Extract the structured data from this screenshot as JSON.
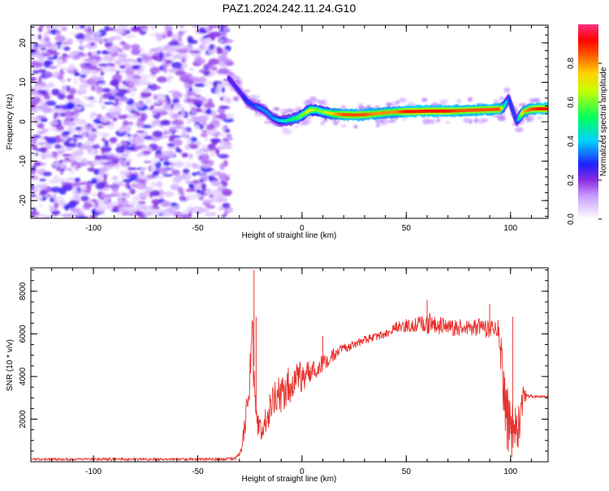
{
  "title": "PAZ1.2024.242.11.24.G10",
  "chart_data": [
    {
      "type": "heatmap",
      "title": "PAZ1.2024.242.11.24.G10",
      "xlabel": "Height of straight line (km)",
      "ylabel": "Frequency (Hz)",
      "xlim": [
        -130,
        118
      ],
      "ylim": [
        -24.5,
        24.5
      ],
      "xticks": [
        -100,
        -50,
        0,
        50,
        100
      ],
      "yticks": [
        -20,
        -10,
        0,
        10,
        20
      ],
      "xtick_labels": [
        "-100",
        "-50",
        "0",
        "50",
        "100"
      ],
      "ytick_labels": [
        "-20",
        "-10",
        "0",
        "10",
        "20"
      ],
      "colorbar": {
        "label": "Normalized spectral amplitude",
        "range": [
          0,
          1
        ],
        "ticks": [
          0.0,
          0.2,
          0.4,
          0.6,
          0.8
        ],
        "tick_labels": [
          "0.0",
          "0.2",
          "0.4",
          "0.6",
          "0.8"
        ]
      },
      "ridge": {
        "x": [
          -35,
          -32,
          -29,
          -26,
          -23,
          -20,
          -17,
          -14,
          -11,
          -8,
          -5,
          -2,
          1,
          4,
          7,
          10,
          15,
          20,
          25,
          30,
          35,
          40,
          45,
          50,
          55,
          60,
          65,
          70,
          75,
          80,
          85,
          90,
          95,
          97,
          99,
          101,
          103,
          106,
          110,
          114,
          118
        ],
        "y": [
          11,
          9,
          7,
          5,
          4,
          3.5,
          2.5,
          1,
          0.3,
          0.2,
          0.6,
          1,
          2,
          3,
          3,
          2.5,
          2,
          1.8,
          1.7,
          1.8,
          2,
          2.3,
          2.5,
          2.6,
          2.6,
          2.7,
          2.7,
          2.7,
          2.8,
          2.9,
          3,
          3.1,
          3.2,
          4,
          6,
          3,
          0,
          2.5,
          3.2,
          3.3,
          3.3
        ],
        "amplitude": [
          0.25,
          0.25,
          0.25,
          0.3,
          0.3,
          0.35,
          0.35,
          0.35,
          0.4,
          0.45,
          0.5,
          0.55,
          0.6,
          0.7,
          0.6,
          0.6,
          0.75,
          0.85,
          0.85,
          0.85,
          0.8,
          0.8,
          0.8,
          0.9,
          0.9,
          0.9,
          0.9,
          0.9,
          0.85,
          0.85,
          0.85,
          0.85,
          0.85,
          0.5,
          0.3,
          0.3,
          0.3,
          0.75,
          0.85,
          0.9,
          0.9
        ]
      }
    },
    {
      "type": "line",
      "xlabel": "Height of straight line (km)",
      "ylabel": "SNR (10 * v/v)",
      "xlim": [
        -130,
        118
      ],
      "ylim": [
        0,
        9100
      ],
      "xticks": [
        -100,
        -50,
        0,
        50,
        100
      ],
      "yticks": [
        2000,
        4000,
        6000,
        8000
      ],
      "xtick_labels": [
        "-100",
        "-50",
        "0",
        "50",
        "100"
      ],
      "ytick_labels": [
        "2000",
        "4000",
        "6000",
        "8000"
      ],
      "color": "#e8332f",
      "envelope": {
        "x": [
          -130,
          -40,
          -32,
          -30,
          -29,
          -28,
          -27,
          -26,
          -25,
          -24,
          -23,
          -22,
          -20,
          -18,
          -15,
          -12,
          -10,
          -7,
          -4,
          0,
          5,
          10,
          15,
          20,
          30,
          40,
          45,
          50,
          55,
          60,
          65,
          70,
          80,
          85,
          88,
          90,
          92,
          94,
          96,
          98,
          100,
          102,
          104,
          106,
          108,
          112,
          118
        ],
        "mean": [
          120,
          120,
          150,
          300,
          700,
          1200,
          1900,
          2600,
          3800,
          5500,
          4500,
          2200,
          1500,
          1900,
          2600,
          3000,
          3200,
          3500,
          3800,
          4000,
          4300,
          4600,
          5000,
          5300,
          5700,
          6000,
          6300,
          6400,
          6400,
          6500,
          6400,
          6300,
          6300,
          6300,
          6250,
          6200,
          6300,
          6300,
          4500,
          2200,
          1500,
          1200,
          1800,
          3000,
          3100,
          3050,
          3050
        ],
        "noise": [
          60,
          60,
          80,
          150,
          300,
          600,
          800,
          900,
          1200,
          1800,
          1500,
          800,
          600,
          700,
          800,
          900,
          900,
          900,
          800,
          700,
          500,
          400,
          300,
          250,
          200,
          200,
          250,
          300,
          350,
          500,
          450,
          400,
          400,
          450,
          450,
          450,
          450,
          500,
          1500,
          1500,
          1500,
          1400,
          1200,
          600,
          100,
          50,
          50
        ]
      },
      "spikes": [
        {
          "x": -23,
          "y": 9000
        },
        {
          "x": -22,
          "y": 6800
        },
        {
          "x": 10,
          "y": 5900
        },
        {
          "x": 60,
          "y": 7600
        },
        {
          "x": 90,
          "y": 7400
        },
        {
          "x": 101,
          "y": 6800
        }
      ]
    }
  ]
}
